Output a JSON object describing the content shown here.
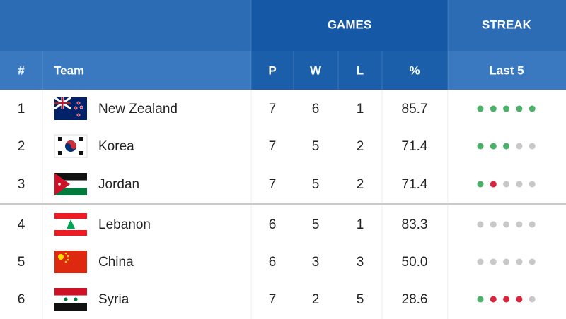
{
  "header": {
    "groups": [
      "GAMES",
      "STREAK"
    ],
    "columns": [
      "#",
      "Team",
      "P",
      "W",
      "L",
      "%",
      "Last 5"
    ]
  },
  "streak_colors": {
    "win": "#4caf6a",
    "loss": "#d9263f",
    "none": "#c8c8c8"
  },
  "table": {
    "rows": [
      {
        "rank": "1",
        "team": "New Zealand",
        "p": "7",
        "w": "6",
        "l": "1",
        "pct": "85.7",
        "streak": [
          "win",
          "win",
          "win",
          "win",
          "win"
        ]
      },
      {
        "rank": "2",
        "team": "Korea",
        "p": "7",
        "w": "5",
        "l": "2",
        "pct": "71.4",
        "streak": [
          "win",
          "win",
          "win",
          "none",
          "none"
        ]
      },
      {
        "rank": "3",
        "team": "Jordan",
        "p": "7",
        "w": "5",
        "l": "2",
        "pct": "71.4",
        "streak": [
          "win",
          "loss",
          "none",
          "none",
          "none"
        ]
      },
      {
        "rank": "4",
        "team": "Lebanon",
        "p": "6",
        "w": "5",
        "l": "1",
        "pct": "83.3",
        "streak": [
          "none",
          "none",
          "none",
          "none",
          "none"
        ]
      },
      {
        "rank": "5",
        "team": "China",
        "p": "6",
        "w": "3",
        "l": "3",
        "pct": "50.0",
        "streak": [
          "none",
          "none",
          "none",
          "none",
          "none"
        ]
      },
      {
        "rank": "6",
        "team": "Syria",
        "p": "7",
        "w": "2",
        "l": "5",
        "pct": "28.6",
        "streak": [
          "win",
          "loss",
          "loss",
          "loss",
          "none"
        ]
      }
    ]
  }
}
